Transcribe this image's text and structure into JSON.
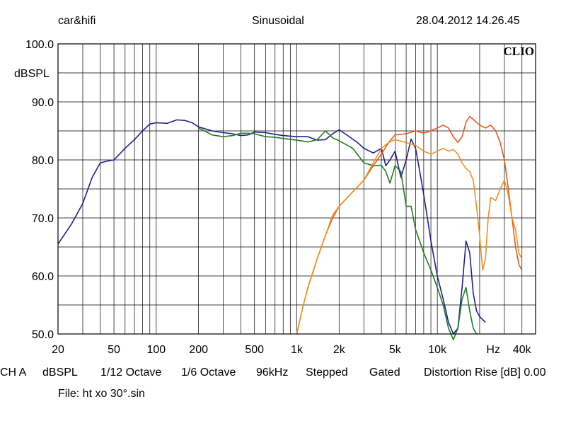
{
  "header": {
    "left": "car&hifi",
    "center": "Sinusoidal",
    "right": "28.04.2012 14.26.45"
  },
  "brand": "CLIO",
  "footer": {
    "items": [
      "CH A",
      "dBSPL",
      "1/12 Octave",
      "1/6 Octave",
      "96kHz",
      "Stepped",
      "Gated",
      "Distortion Rise [dB] 0.00"
    ]
  },
  "file_line": "File: ht xo 30°.sin",
  "chart_data": {
    "type": "line",
    "ylabel": "dBSPL",
    "xscale": "log",
    "xlim": [
      20,
      50000
    ],
    "ylim": [
      50,
      100
    ],
    "y_ticks": [
      {
        "value": 100,
        "label": "100.0"
      },
      {
        "value": 90,
        "label": "90.0"
      },
      {
        "value": 80,
        "label": "80.0"
      },
      {
        "value": 70,
        "label": "70.0"
      },
      {
        "value": 60,
        "label": "60.0"
      },
      {
        "value": 50,
        "label": "50.0"
      }
    ],
    "x_ticks": [
      {
        "value": 20,
        "label": "20"
      },
      {
        "value": 50,
        "label": "50"
      },
      {
        "value": 100,
        "label": "100"
      },
      {
        "value": 200,
        "label": "200"
      },
      {
        "value": 500,
        "label": "500"
      },
      {
        "value": 1000,
        "label": "1k"
      },
      {
        "value": 2000,
        "label": "2k"
      },
      {
        "value": 5000,
        "label": "5k"
      },
      {
        "value": 10000,
        "label": "10k"
      },
      {
        "value": 25000,
        "label": "Hz"
      },
      {
        "value": 40000,
        "label": "40k"
      }
    ],
    "grid": true,
    "series": [
      {
        "color": "#1f1f8f",
        "points": [
          [
            20,
            65.5
          ],
          [
            25,
            69
          ],
          [
            30,
            72.5
          ],
          [
            35,
            77
          ],
          [
            40,
            79.5
          ],
          [
            45,
            79.8
          ],
          [
            50,
            80
          ],
          [
            60,
            82
          ],
          [
            70,
            83.5
          ],
          [
            80,
            85
          ],
          [
            90,
            86.2
          ],
          [
            100,
            86.4
          ],
          [
            120,
            86.3
          ],
          [
            140,
            86.9
          ],
          [
            160,
            86.8
          ],
          [
            180,
            86.4
          ],
          [
            200,
            85.7
          ],
          [
            250,
            85
          ],
          [
            300,
            84.7
          ],
          [
            350,
            84.5
          ],
          [
            400,
            84.2
          ],
          [
            450,
            84.3
          ],
          [
            500,
            84.8
          ],
          [
            600,
            84.7
          ],
          [
            700,
            84.4
          ],
          [
            800,
            84.2
          ],
          [
            1000,
            84
          ],
          [
            1200,
            84
          ],
          [
            1400,
            83.4
          ],
          [
            1600,
            83.5
          ],
          [
            1800,
            84.5
          ],
          [
            2000,
            85.2
          ],
          [
            2300,
            84.2
          ],
          [
            2700,
            83
          ],
          [
            3000,
            82
          ],
          [
            3500,
            81.2
          ],
          [
            4000,
            82
          ],
          [
            4300,
            79
          ],
          [
            4600,
            80
          ],
          [
            5000,
            81.5
          ],
          [
            5500,
            77
          ],
          [
            6000,
            80
          ],
          [
            6500,
            83.6
          ],
          [
            7000,
            82
          ],
          [
            7500,
            78
          ],
          [
            8000,
            74
          ],
          [
            8500,
            70
          ],
          [
            9000,
            66
          ],
          [
            10000,
            60
          ],
          [
            11000,
            56
          ],
          [
            12000,
            52
          ],
          [
            13000,
            50
          ],
          [
            14000,
            51
          ],
          [
            15000,
            58
          ],
          [
            16000,
            66
          ],
          [
            17000,
            64
          ],
          [
            18000,
            57
          ],
          [
            19000,
            54
          ],
          [
            20000,
            53
          ],
          [
            22000,
            52
          ]
        ]
      },
      {
        "color": "#1e7e1e",
        "points": [
          [
            200,
            85.5
          ],
          [
            250,
            84.3
          ],
          [
            300,
            84
          ],
          [
            350,
            84.2
          ],
          [
            400,
            84.6
          ],
          [
            450,
            84.6
          ],
          [
            500,
            84.5
          ],
          [
            600,
            84
          ],
          [
            700,
            83.9
          ],
          [
            800,
            83.7
          ],
          [
            1000,
            83.4
          ],
          [
            1200,
            83.1
          ],
          [
            1400,
            83.5
          ],
          [
            1600,
            85
          ],
          [
            1800,
            83.8
          ],
          [
            2000,
            83.3
          ],
          [
            2500,
            82
          ],
          [
            3000,
            79.5
          ],
          [
            3500,
            79
          ],
          [
            4000,
            79.1
          ],
          [
            4300,
            78
          ],
          [
            4600,
            76
          ],
          [
            5000,
            79
          ],
          [
            5500,
            78
          ],
          [
            6000,
            72
          ],
          [
            6500,
            72
          ],
          [
            7000,
            68
          ],
          [
            8000,
            64
          ],
          [
            9000,
            61
          ],
          [
            10000,
            58
          ],
          [
            11000,
            55
          ],
          [
            12000,
            51
          ],
          [
            13000,
            49
          ],
          [
            14000,
            51
          ],
          [
            15000,
            56
          ],
          [
            16000,
            58
          ],
          [
            17000,
            54
          ],
          [
            18000,
            51
          ],
          [
            19000,
            50
          ]
        ]
      },
      {
        "color": "#e4591c",
        "points": [
          [
            1000,
            50
          ],
          [
            1100,
            54.5
          ],
          [
            1200,
            58
          ],
          [
            1400,
            63
          ],
          [
            1600,
            67
          ],
          [
            1800,
            70
          ],
          [
            2000,
            72
          ],
          [
            2500,
            74.5
          ],
          [
            3000,
            76.5
          ],
          [
            3500,
            79
          ],
          [
            4000,
            81
          ],
          [
            4500,
            83
          ],
          [
            5000,
            84.3
          ],
          [
            6000,
            84.5
          ],
          [
            7000,
            85
          ],
          [
            8000,
            84.6
          ],
          [
            9000,
            85
          ],
          [
            10000,
            85.5
          ],
          [
            11000,
            86
          ],
          [
            12000,
            85.5
          ],
          [
            13000,
            84
          ],
          [
            14000,
            83
          ],
          [
            15000,
            84
          ],
          [
            16000,
            86.5
          ],
          [
            17000,
            87.5
          ],
          [
            18000,
            87
          ],
          [
            20000,
            86
          ],
          [
            22000,
            85.5
          ],
          [
            24000,
            86
          ],
          [
            26000,
            85
          ],
          [
            28000,
            83
          ],
          [
            30000,
            80
          ],
          [
            32000,
            75
          ],
          [
            34000,
            70
          ],
          [
            36000,
            65
          ],
          [
            38000,
            62
          ],
          [
            40000,
            61
          ]
        ]
      },
      {
        "color": "#f0901e",
        "points": [
          [
            1000,
            50
          ],
          [
            1100,
            54.5
          ],
          [
            1200,
            58
          ],
          [
            1400,
            63
          ],
          [
            1600,
            67
          ],
          [
            1800,
            70.5
          ],
          [
            2000,
            72
          ],
          [
            2500,
            74.5
          ],
          [
            3000,
            76.5
          ],
          [
            3500,
            79.5
          ],
          [
            4000,
            82
          ],
          [
            4500,
            83
          ],
          [
            5000,
            83.5
          ],
          [
            6000,
            83
          ],
          [
            7000,
            82.5
          ],
          [
            8000,
            81.5
          ],
          [
            9000,
            81
          ],
          [
            10000,
            81.5
          ],
          [
            11000,
            82
          ],
          [
            12000,
            81.5
          ],
          [
            13000,
            81.8
          ],
          [
            14000,
            81
          ],
          [
            15000,
            79.5
          ],
          [
            16000,
            78.5
          ],
          [
            17000,
            78
          ],
          [
            18000,
            76.5
          ],
          [
            19000,
            72
          ],
          [
            20000,
            67
          ],
          [
            21000,
            61
          ],
          [
            22000,
            63
          ],
          [
            23000,
            70
          ],
          [
            24000,
            73.5
          ],
          [
            26000,
            73
          ],
          [
            28000,
            75
          ],
          [
            30000,
            76.5
          ],
          [
            32000,
            74
          ],
          [
            34000,
            70
          ],
          [
            36000,
            68
          ],
          [
            38000,
            64
          ],
          [
            40000,
            63
          ]
        ]
      }
    ]
  }
}
